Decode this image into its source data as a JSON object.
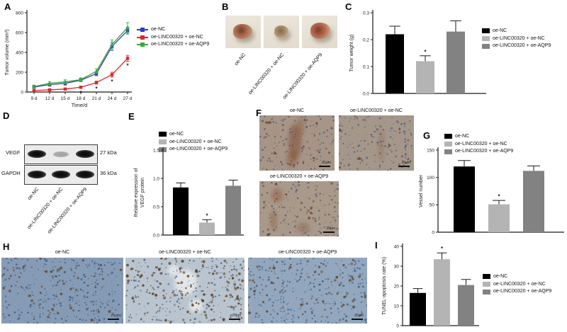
{
  "figure": {
    "groups": [
      "oe-NC",
      "oe-LINC00320 + oe-NC",
      "oe-LINC00320 + oe-AQP9"
    ],
    "group_colors_line": [
      "#2e3cc0",
      "#e2242b",
      "#3aa83e"
    ],
    "group_colors_bar": [
      "#000000",
      "#b4b4b4",
      "#828282"
    ],
    "significance_marker": "*"
  },
  "panels": {
    "A": {
      "label": "A"
    },
    "B": {
      "label": "B"
    },
    "C": {
      "label": "C"
    },
    "D": {
      "label": "D",
      "rows": [
        {
          "protein": "VEGF",
          "size": "27 kDa"
        },
        {
          "protein": "GAPDH",
          "size": "36 kDa"
        }
      ]
    },
    "E": {
      "label": "E"
    },
    "F": {
      "label": "F",
      "scale_label": "25μm"
    },
    "G": {
      "label": "G"
    },
    "H": {
      "label": "H",
      "scale_label": "25μm"
    },
    "I": {
      "label": "I"
    }
  },
  "chart_data": [
    {
      "id": "A",
      "type": "line",
      "title": "",
      "xlabel": "Time/d",
      "ylabel": "Tumor volume (mm³)",
      "x_categories": [
        "9 d",
        "12 d",
        "15 d",
        "18 d",
        "21 d",
        "24 d",
        "27 d"
      ],
      "ylim": [
        0,
        800
      ],
      "yticks": [
        0,
        200,
        400,
        600,
        800
      ],
      "ytick_labels": [
        "0",
        "200",
        "400",
        "600",
        "800"
      ],
      "grid": false,
      "legend_position": "right",
      "series": [
        {
          "name": "oe-NC",
          "color": "#2e3cc0",
          "marker": "square",
          "values": [
            50,
            75,
            88,
            120,
            185,
            460,
            620
          ],
          "errors": [
            12,
            15,
            18,
            15,
            20,
            40,
            35
          ],
          "stars": [
            false,
            false,
            false,
            false,
            false,
            false,
            false
          ]
        },
        {
          "name": "oe-LINC00320 + oe-NC",
          "color": "#e2242b",
          "marker": "square",
          "values": [
            15,
            22,
            30,
            48,
            95,
            175,
            340
          ],
          "errors": [
            8,
            8,
            10,
            12,
            15,
            25,
            30
          ],
          "stars": [
            false,
            false,
            false,
            true,
            true,
            true,
            true
          ]
        },
        {
          "name": "oe-LINC00320 + oe-AQP9",
          "color": "#3aa83e",
          "marker": "triangle",
          "values": [
            55,
            88,
            103,
            125,
            210,
            480,
            650
          ],
          "errors": [
            15,
            18,
            20,
            18,
            25,
            45,
            50
          ],
          "stars": [
            false,
            false,
            false,
            false,
            false,
            false,
            false
          ]
        }
      ]
    },
    {
      "id": "C",
      "type": "bar",
      "title": "",
      "ylabel": "Tumor weight (g)",
      "categories": [
        "oe-NC",
        "oe-LINC00320 + oe-NC",
        "oe-LINC00320 + oe-AQP9"
      ],
      "ylim": [
        0,
        0.3
      ],
      "yticks": [
        0,
        0.1,
        0.2,
        0.3
      ],
      "ytick_labels": [
        "0.0",
        "0.1",
        "0.2",
        "0.3"
      ],
      "values": [
        0.22,
        0.12,
        0.23
      ],
      "errors": [
        0.03,
        0.02,
        0.04
      ],
      "stars": [
        false,
        true,
        false
      ],
      "colors": [
        "#000000",
        "#b4b4b4",
        "#828282"
      ],
      "grid": false,
      "legend_position": "right"
    },
    {
      "id": "E",
      "type": "bar",
      "title": "",
      "ylabel": [
        "Relative expression of",
        "VEGF protein"
      ],
      "categories": [
        "oe-NC",
        "oe-LINC00320 + oe-NC",
        "oe-LINC00320 + oe-AQP9"
      ],
      "ylim": [
        0,
        1.5
      ],
      "yticks": [
        0,
        0.5,
        1.0,
        1.5
      ],
      "ytick_labels": [
        "0.0",
        "0.5",
        "1.0",
        "1.5"
      ],
      "values": [
        0.84,
        0.22,
        0.87
      ],
      "errors": [
        0.08,
        0.05,
        0.1
      ],
      "stars": [
        false,
        true,
        false
      ],
      "colors": [
        "#000000",
        "#b4b4b4",
        "#828282"
      ],
      "grid": false,
      "legend_position": "top"
    },
    {
      "id": "G",
      "type": "bar",
      "title": "",
      "ylabel": "Vessel number",
      "categories": [
        "oe-NC",
        "oe-LINC00320 + oe-NC",
        "oe-LINC00320 + oe-AQP9"
      ],
      "ylim": [
        0,
        150
      ],
      "yticks": [
        0,
        50,
        100,
        150
      ],
      "ytick_labels": [
        "0",
        "50",
        "100",
        "150"
      ],
      "values": [
        120,
        51,
        112
      ],
      "errors": [
        11,
        7,
        9
      ],
      "stars": [
        false,
        true,
        false
      ],
      "colors": [
        "#000000",
        "#b4b4b4",
        "#828282"
      ],
      "grid": false,
      "legend_position": "top"
    },
    {
      "id": "I",
      "type": "bar",
      "title": "",
      "ylabel": "TUNEL-apoptosis rate (%)",
      "categories": [
        "oe-NC",
        "oe-LINC00320 + oe-NC",
        "oe-LINC00320 + oe-AQP9"
      ],
      "ylim": [
        0,
        40
      ],
      "yticks": [
        0,
        10,
        20,
        30,
        40
      ],
      "ytick_labels": [
        "0",
        "10",
        "20",
        "30",
        "40"
      ],
      "values": [
        16.5,
        33.5,
        20.5
      ],
      "errors": [
        2.2,
        3.2,
        2.8
      ],
      "stars": [
        false,
        true,
        false
      ],
      "colors": [
        "#000000",
        "#b4b4b4",
        "#828282"
      ],
      "grid": false,
      "legend_position": "right"
    }
  ]
}
